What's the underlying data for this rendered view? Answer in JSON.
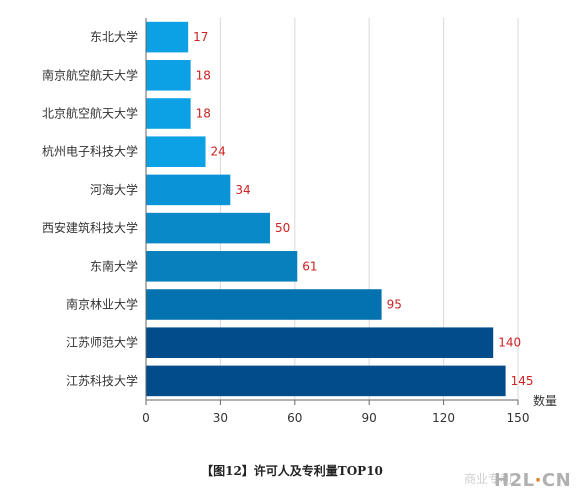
{
  "chart_data": {
    "type": "bar",
    "orientation": "horizontal",
    "categories": [
      "东北大学",
      "南京航空航天大学",
      "北京航空航天大学",
      "杭州电子科技大学",
      "河海大学",
      "西安建筑科技大学",
      "东南大学",
      "南京林业大学",
      "江苏师范大学",
      "江苏科技大学"
    ],
    "values": [
      17,
      18,
      18,
      24,
      34,
      50,
      61,
      95,
      140,
      145
    ],
    "bar_colors": [
      "#0ca0e4",
      "#0ca0e4",
      "#0ca0e4",
      "#0ca0e4",
      "#0a93d6",
      "#0989c8",
      "#0880be",
      "#0572b0",
      "#034c8c",
      "#034c8c"
    ],
    "value_label_color": "#cc2222",
    "xlabel": "数量",
    "xlim": [
      0,
      150
    ],
    "xticks": [
      0,
      30,
      60,
      90,
      120,
      150
    ],
    "grid": "vertical"
  },
  "caption": "【图12】许可人及专利量TOP10",
  "watermark": {
    "left_text": "商业专利",
    "logo_main": "H2L",
    "logo_sep": "·",
    "logo_tail": "CN"
  }
}
